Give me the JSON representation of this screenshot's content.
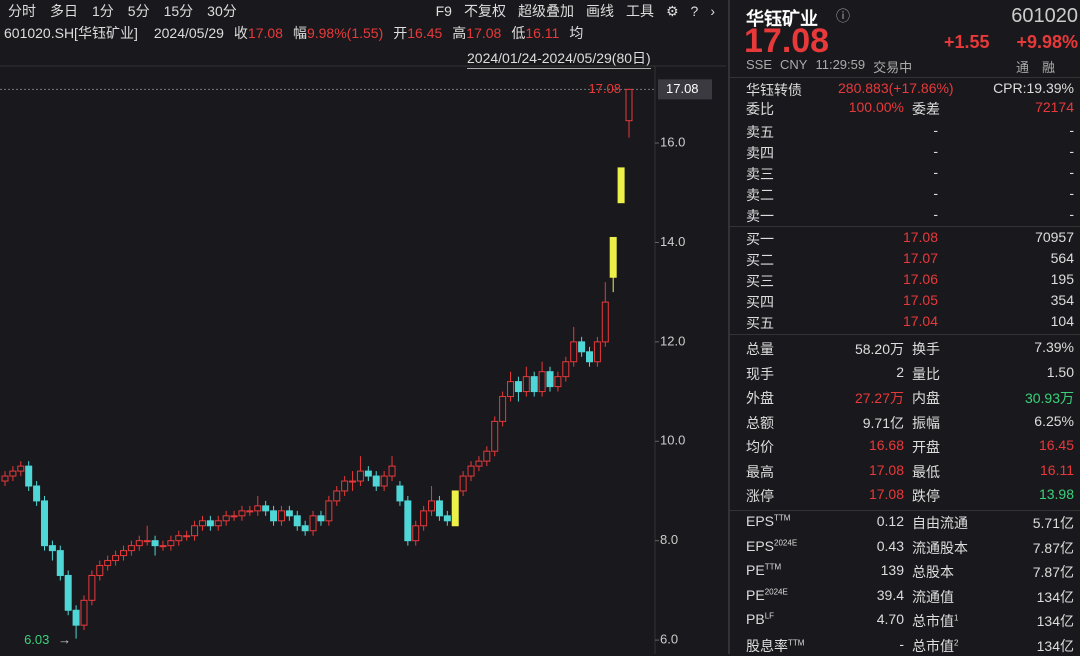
{
  "toolbar": {
    "left": [
      "分时",
      "多日",
      "1分",
      "5分",
      "15分",
      "30分"
    ],
    "right": [
      "F9",
      "不复权",
      "超级叠加",
      "画线",
      "工具"
    ]
  },
  "info": {
    "code": "601020.SH[华钰矿业]",
    "date": "2024/05/29",
    "items": [
      {
        "label": "收",
        "value": "17.08"
      },
      {
        "label": "幅",
        "value": "9.98%(1.55)"
      },
      {
        "label": "开",
        "value": "16.45"
      },
      {
        "label": "高",
        "value": "17.08"
      },
      {
        "label": "低",
        "value": "16.11"
      }
    ],
    "avg_label": "均"
  },
  "range": "2024/01/24-2024/05/29(80日)",
  "chart_data": {
    "type": "candlestick",
    "open": [
      9.2,
      9.3,
      9.4,
      9.5,
      9.1,
      8.8,
      7.9,
      7.8,
      7.3,
      6.6,
      6.3,
      6.8,
      7.3,
      7.5,
      7.6,
      7.7,
      7.8,
      7.9,
      8.0,
      8.0,
      7.9,
      7.9,
      8.0,
      8.1,
      8.1,
      8.3,
      8.4,
      8.3,
      8.4,
      8.5,
      8.5,
      8.6,
      8.6,
      8.7,
      8.6,
      8.4,
      8.6,
      8.5,
      8.3,
      8.2,
      8.5,
      8.4,
      8.8,
      9.0,
      9.2,
      9.2,
      9.4,
      9.3,
      9.1,
      9.3,
      9.1,
      8.8,
      8.0,
      8.3,
      8.6,
      8.8,
      8.5,
      8.3,
      9.0,
      9.3,
      9.5,
      9.6,
      9.8,
      10.4,
      10.9,
      11.2,
      11.0,
      11.3,
      11.0,
      11.4,
      11.1,
      11.3,
      11.6,
      12.0,
      11.8,
      11.6,
      12.0,
      13.3,
      14.8,
      16.45
    ],
    "high": [
      9.4,
      9.5,
      9.6,
      9.6,
      9.2,
      8.9,
      8.0,
      7.9,
      7.4,
      6.7,
      6.9,
      7.4,
      7.6,
      7.7,
      7.8,
      7.9,
      8.0,
      8.1,
      8.3,
      8.1,
      8.0,
      8.1,
      8.2,
      8.2,
      8.4,
      8.5,
      8.5,
      8.5,
      8.6,
      8.6,
      8.7,
      8.7,
      8.9,
      8.8,
      8.7,
      8.7,
      8.7,
      8.6,
      8.4,
      8.6,
      8.6,
      8.9,
      9.1,
      9.3,
      9.4,
      9.7,
      9.5,
      9.4,
      9.4,
      9.7,
      9.2,
      8.9,
      8.4,
      8.7,
      9.1,
      8.9,
      8.6,
      9.0,
      9.4,
      9.6,
      9.7,
      9.9,
      10.5,
      11.0,
      11.4,
      11.3,
      11.5,
      11.4,
      11.6,
      11.5,
      11.4,
      11.7,
      12.3,
      12.1,
      11.9,
      12.1,
      13.2,
      14.1,
      15.5,
      17.08
    ],
    "low": [
      9.1,
      9.2,
      9.3,
      9.0,
      8.7,
      7.8,
      7.6,
      7.2,
      6.5,
      6.03,
      6.2,
      6.7,
      7.2,
      7.4,
      7.5,
      7.6,
      7.7,
      7.8,
      7.9,
      7.7,
      7.8,
      7.8,
      7.9,
      8.0,
      8.0,
      8.2,
      8.2,
      8.2,
      8.3,
      8.4,
      8.4,
      8.5,
      8.5,
      8.5,
      8.3,
      8.3,
      8.4,
      8.2,
      8.1,
      8.1,
      8.3,
      8.3,
      8.7,
      8.9,
      9.0,
      9.1,
      9.2,
      9.0,
      9.0,
      9.2,
      8.7,
      7.9,
      7.9,
      8.2,
      8.5,
      8.4,
      8.3,
      8.3,
      8.9,
      9.2,
      9.4,
      9.5,
      9.7,
      10.3,
      10.8,
      10.8,
      10.9,
      10.9,
      10.9,
      11.0,
      11.0,
      11.2,
      11.5,
      11.7,
      11.5,
      11.5,
      11.9,
      13.0,
      14.8,
      16.11
    ],
    "close": [
      9.3,
      9.4,
      9.5,
      9.1,
      8.8,
      7.9,
      7.8,
      7.3,
      6.6,
      6.3,
      6.8,
      7.3,
      7.5,
      7.6,
      7.7,
      7.8,
      7.9,
      8.0,
      8.0,
      7.9,
      7.9,
      8.0,
      8.1,
      8.1,
      8.3,
      8.4,
      8.3,
      8.4,
      8.5,
      8.5,
      8.6,
      8.6,
      8.7,
      8.6,
      8.4,
      8.6,
      8.5,
      8.3,
      8.2,
      8.5,
      8.4,
      8.8,
      9.0,
      9.2,
      9.2,
      9.4,
      9.3,
      9.1,
      9.3,
      9.5,
      8.8,
      8.0,
      8.3,
      8.6,
      8.8,
      8.5,
      8.4,
      9.0,
      9.3,
      9.5,
      9.6,
      9.8,
      10.4,
      10.9,
      11.2,
      11.0,
      11.3,
      11.0,
      11.4,
      11.1,
      11.3,
      11.6,
      12.0,
      11.8,
      11.6,
      12.0,
      12.8,
      14.1,
      15.5,
      17.08
    ],
    "up_color": "#e8393a",
    "down_color": "#4fd6d6",
    "highlight_color": "#eef04a",
    "highlight": [
      57,
      77,
      78
    ],
    "ylim": [
      5.72,
      17.55
    ],
    "yticks": [
      {
        "value": 6,
        "label": "6.0"
      },
      {
        "value": 8,
        "label": "8.0"
      },
      {
        "value": 10,
        "label": "10.0"
      },
      {
        "value": 12,
        "label": "12.0"
      },
      {
        "value": 14,
        "label": "14.0"
      },
      {
        "value": 16,
        "label": "16.0"
      }
    ],
    "last_label": "17.08",
    "high_label": "17.08",
    "low_label": "6.03"
  },
  "quote": {
    "name": "华钰矿业",
    "code": "601020",
    "price": "17.08",
    "change": "+1.55",
    "pct": "+9.98%",
    "status": [
      "SSE",
      "CNY",
      "11:29:59",
      "交易中"
    ],
    "flags": [
      "通",
      "融"
    ],
    "bond": [
      "华钰转债",
      "280.883(+17.86%)",
      "CPR:19.39%"
    ],
    "ratio": [
      "委比",
      "100.00%",
      "委差",
      "72174"
    ],
    "asks": [
      [
        "卖五",
        "-",
        "-"
      ],
      [
        "卖四",
        "-",
        "-"
      ],
      [
        "卖三",
        "-",
        "-"
      ],
      [
        "卖二",
        "-",
        "-"
      ],
      [
        "卖一",
        "-",
        "-"
      ]
    ],
    "bids": [
      [
        "买一",
        "17.08",
        "70957"
      ],
      [
        "买二",
        "17.07",
        "564"
      ],
      [
        "买三",
        "17.06",
        "195"
      ],
      [
        "买四",
        "17.05",
        "354"
      ],
      [
        "买五",
        "17.04",
        "104"
      ]
    ],
    "stats": [
      {
        "cells": [
          "总量",
          "58.20万",
          "换手",
          "7.39%"
        ],
        "colors": [
          "#ddd",
          "#ddd",
          "#ddd",
          "#ddd"
        ]
      },
      {
        "cells": [
          "现手",
          "2",
          "量比",
          "1.50"
        ],
        "colors": [
          "#ddd",
          "#ddd",
          "#ddd",
          "#ddd"
        ]
      },
      {
        "cells": [
          "外盘",
          "27.27万",
          "内盘",
          "30.93万"
        ],
        "colors": [
          "#ddd",
          "#e8393a",
          "#ddd",
          "#3ad17b"
        ]
      },
      {
        "cells": [
          "总额",
          "9.71亿",
          "振幅",
          "6.25%"
        ],
        "colors": [
          "#ddd",
          "#ddd",
          "#ddd",
          "#ddd"
        ]
      },
      {
        "cells": [
          "均价",
          "16.68",
          "开盘",
          "16.45"
        ],
        "colors": [
          "#ddd",
          "#e8393a",
          "#ddd",
          "#e8393a"
        ]
      },
      {
        "cells": [
          "最高",
          "17.08",
          "最低",
          "16.11"
        ],
        "colors": [
          "#ddd",
          "#e8393a",
          "#ddd",
          "#e8393a"
        ]
      },
      {
        "cells": [
          "涨停",
          "17.08",
          "跌停",
          "13.98"
        ],
        "colors": [
          "#ddd",
          "#e8393a",
          "#ddd",
          "#3ad17b"
        ]
      }
    ],
    "fund": [
      [
        {
          "label": "EPS",
          "sup": "TTM"
        },
        "0.12",
        {
          "label": "自由流通"
        },
        "5.71亿"
      ],
      [
        {
          "label": "EPS",
          "sup": "2024E"
        },
        "0.43",
        {
          "label": "流通股本"
        },
        "7.87亿"
      ],
      [
        {
          "label": "PE",
          "sup": "TTM"
        },
        "139",
        {
          "label": "总股本"
        },
        "7.87亿"
      ],
      [
        {
          "label": "PE",
          "sup": "2024E"
        },
        "39.4",
        {
          "label": "流通值"
        },
        "134亿"
      ],
      [
        {
          "label": "PB",
          "sup": "LF"
        },
        "4.70",
        {
          "label": "总市值",
          "sup": "1"
        },
        "134亿"
      ],
      [
        {
          "label": "股息率",
          "sup": "TTM"
        },
        "-",
        {
          "label": "总市值",
          "sup": "2"
        },
        "134亿"
      ]
    ]
  }
}
